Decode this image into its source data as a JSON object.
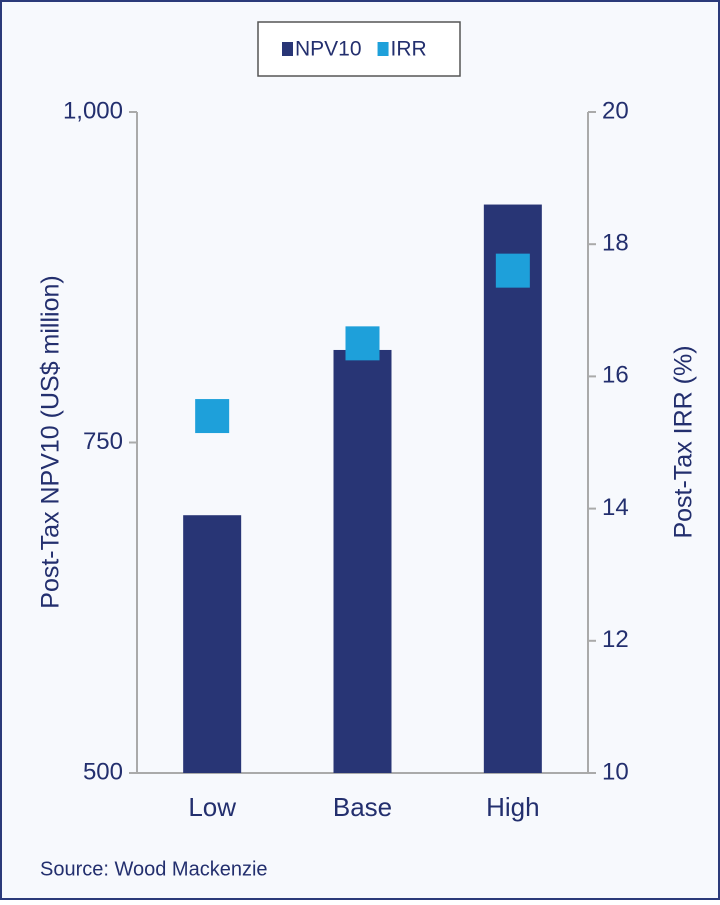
{
  "chart_data": {
    "type": "bar",
    "categories": [
      "Low",
      "Base",
      "High"
    ],
    "series": [
      {
        "name": "NPV10",
        "color": "#283575",
        "type": "bar",
        "values": [
          695,
          820,
          930
        ]
      },
      {
        "name": "IRR",
        "color": "#1ea0da",
        "type": "scatter",
        "axis": "y2",
        "values": [
          15.4,
          16.5,
          17.6
        ]
      }
    ],
    "ylabel": "Post-Tax NPV10 (US$ million)",
    "y2label": "Post-Tax IRR (%)",
    "ylim": [
      500,
      1000
    ],
    "yticks": [
      500,
      750,
      {
        "value": 1000,
        "label": "1,000"
      }
    ],
    "y2lim": [
      10,
      20
    ],
    "y2ticks": [
      10,
      12,
      14,
      16,
      18,
      20
    ],
    "source": "Source: Wood Mackenzie"
  }
}
